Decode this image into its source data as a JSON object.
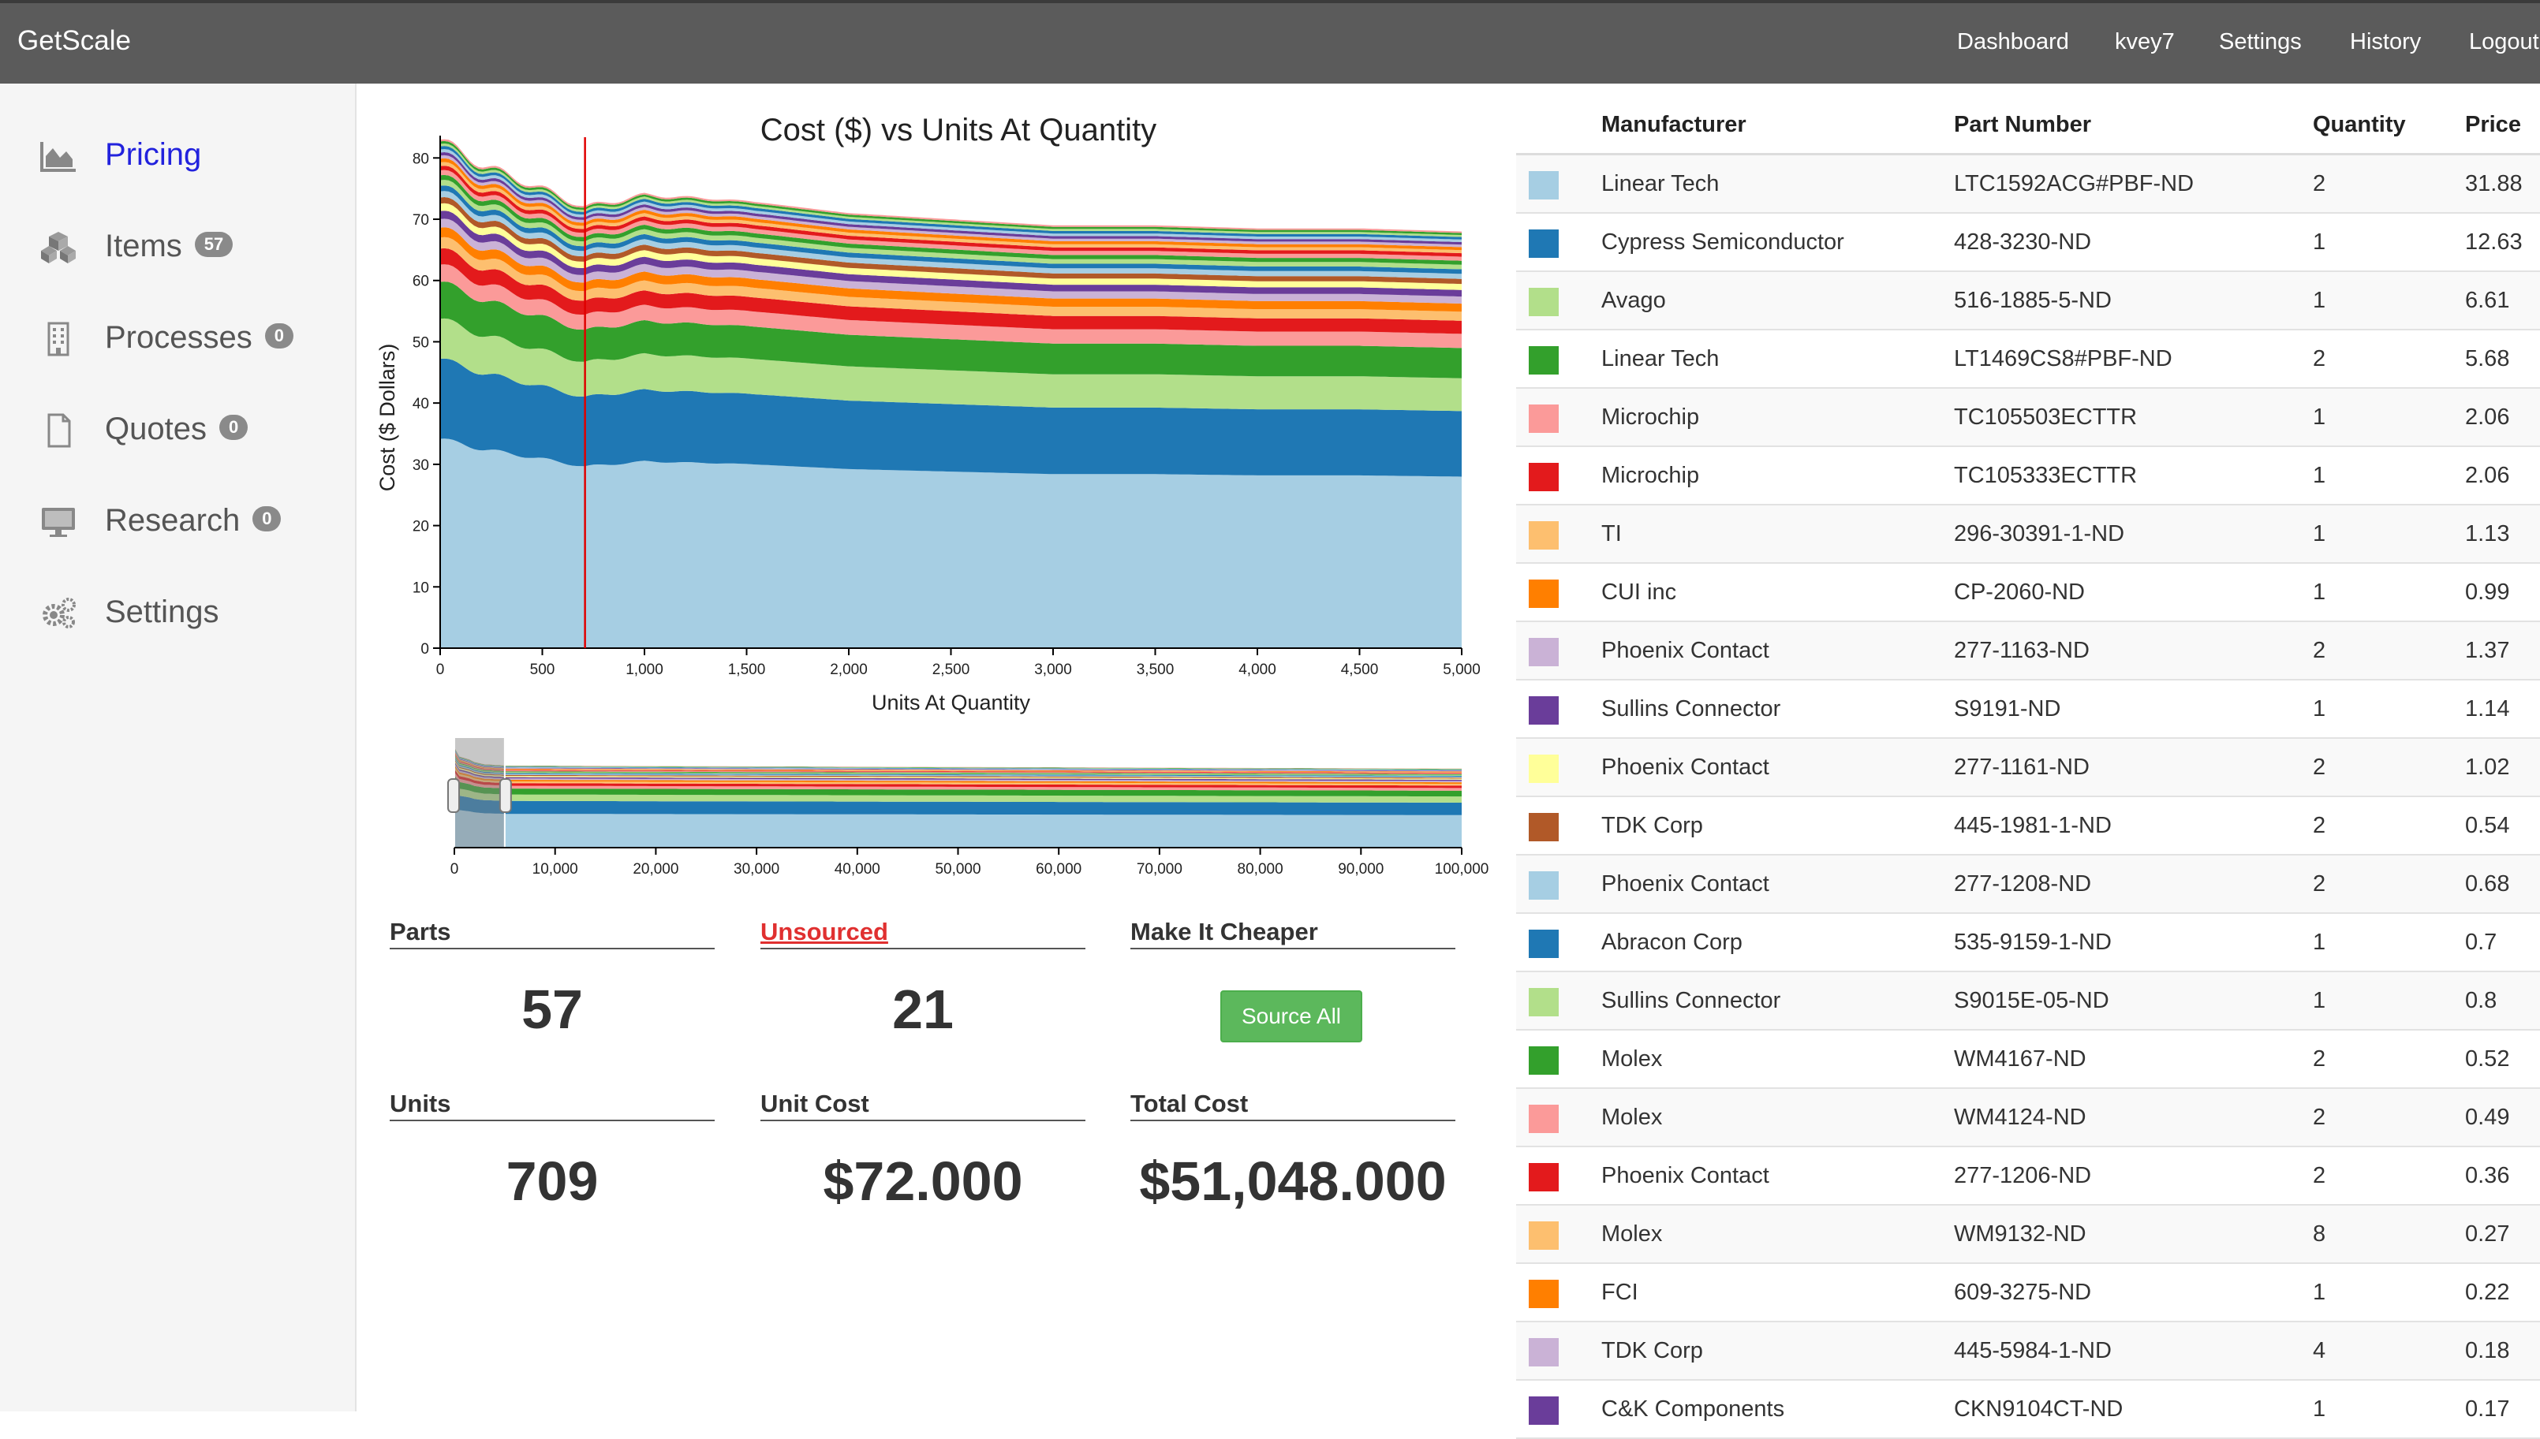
{
  "app": {
    "brand": "GetScale"
  },
  "nav": [
    "Dashboard",
    "kvey7",
    "Settings",
    "History",
    "Logout"
  ],
  "sidebar": {
    "items": [
      {
        "label": "Pricing",
        "icon": "area-chart-icon",
        "badge": null
      },
      {
        "label": "Items",
        "icon": "cubes-icon",
        "badge": "57"
      },
      {
        "label": "Processes",
        "icon": "building-icon",
        "badge": "0"
      },
      {
        "label": "Quotes",
        "icon": "file-icon",
        "badge": "0"
      },
      {
        "label": "Research",
        "icon": "monitor-icon",
        "badge": "0"
      },
      {
        "label": "Settings",
        "icon": "gears-icon",
        "badge": null
      }
    ]
  },
  "chart": {
    "title": "Cost ($) vs Units At Quantity",
    "xlabel": "Units At Quantity",
    "ylabel": "Cost ($ Dollars)"
  },
  "chart_data": [
    {
      "type": "area",
      "stacked": true,
      "title": "Cost ($) vs Units At Quantity",
      "xlabel": "Units At Quantity",
      "ylabel": "Cost ($ Dollars)",
      "xlim": [
        0,
        5000
      ],
      "ylim": [
        0,
        83
      ],
      "x_ticks": [
        "0",
        "500",
        "1,000",
        "1,500",
        "2,000",
        "2,500",
        "3,000",
        "3,500",
        "4,000",
        "4,500",
        "5,000"
      ],
      "y_ticks": [
        "0",
        "10",
        "20",
        "30",
        "40",
        "50",
        "60",
        "70",
        "80"
      ],
      "marker_x": 709,
      "x": [
        0,
        200,
        500,
        709,
        1000,
        1500,
        2000,
        2500,
        3000,
        3500,
        4000,
        4500,
        5000
      ],
      "series_values_at_x0": [
        34,
        13,
        6.5,
        6.0,
        2.8,
        2.6,
        1.8,
        1.6,
        1.4,
        1.3,
        1.2,
        1.0,
        1.0,
        0.9,
        0.9,
        0.8,
        0.8,
        0.7,
        0.6,
        0.6,
        0.5,
        0.5,
        0.5,
        0.5,
        0.4,
        0.4,
        0.3
      ],
      "total": [
        83,
        79,
        75,
        72,
        74,
        73,
        71,
        70,
        69,
        69,
        68.5,
        68.5,
        68
      ]
    },
    {
      "type": "area",
      "stacked": true,
      "title": "",
      "xlim": [
        0,
        100000
      ],
      "x_ticks": [
        "0",
        "10,000",
        "20,000",
        "30,000",
        "40,000",
        "50,000",
        "60,000",
        "70,000",
        "80,000",
        "90,000",
        "100,000"
      ],
      "brush_range": [
        0,
        5000
      ]
    }
  ],
  "stats": {
    "parts": {
      "label": "Parts",
      "value": "57"
    },
    "unsourced": {
      "label": "Unsourced",
      "value": "21"
    },
    "cheaper": {
      "label": "Make It Cheaper",
      "button": "Source All"
    },
    "units": {
      "label": "Units",
      "value": "709"
    },
    "unit_cost": {
      "label": "Unit Cost",
      "value": "$72.000"
    },
    "total_cost": {
      "label": "Total Cost",
      "value": "$51,048.000"
    }
  },
  "table": {
    "headers": [
      "Manufacturer",
      "Part Number",
      "Quantity",
      "Price"
    ],
    "rows": [
      {
        "color": "#a6cee3",
        "mfr": "Linear Tech",
        "part": "LTC1592ACG#PBF-ND",
        "qty": "2",
        "price": "31.88"
      },
      {
        "color": "#1f78b4",
        "mfr": "Cypress Semiconductor",
        "part": "428-3230-ND",
        "qty": "1",
        "price": "12.63"
      },
      {
        "color": "#b2df8a",
        "mfr": "Avago",
        "part": "516-1885-5-ND",
        "qty": "1",
        "price": "6.61"
      },
      {
        "color": "#33a02c",
        "mfr": "Linear Tech",
        "part": "LT1469CS8#PBF-ND",
        "qty": "2",
        "price": "5.68"
      },
      {
        "color": "#fb9a99",
        "mfr": "Microchip",
        "part": "TC105503ECTTR",
        "qty": "1",
        "price": "2.06"
      },
      {
        "color": "#e31a1c",
        "mfr": "Microchip",
        "part": "TC105333ECTTR",
        "qty": "1",
        "price": "2.06"
      },
      {
        "color": "#fdbf6f",
        "mfr": "TI",
        "part": "296-30391-1-ND",
        "qty": "1",
        "price": "1.13"
      },
      {
        "color": "#ff7f00",
        "mfr": "CUI inc",
        "part": "CP-2060-ND",
        "qty": "1",
        "price": "0.99"
      },
      {
        "color": "#cab2d6",
        "mfr": "Phoenix Contact",
        "part": "277-1163-ND",
        "qty": "2",
        "price": "1.37"
      },
      {
        "color": "#6a3d9a",
        "mfr": "Sullins Connector",
        "part": "S9191-ND",
        "qty": "1",
        "price": "1.14"
      },
      {
        "color": "#ffff99",
        "mfr": "Phoenix Contact",
        "part": "277-1161-ND",
        "qty": "2",
        "price": "1.02"
      },
      {
        "color": "#b15928",
        "mfr": "TDK Corp",
        "part": "445-1981-1-ND",
        "qty": "2",
        "price": "0.54"
      },
      {
        "color": "#a6cee3",
        "mfr": "Phoenix Contact",
        "part": "277-1208-ND",
        "qty": "2",
        "price": "0.68"
      },
      {
        "color": "#1f78b4",
        "mfr": "Abracon Corp",
        "part": "535-9159-1-ND",
        "qty": "1",
        "price": "0.7"
      },
      {
        "color": "#b2df8a",
        "mfr": "Sullins Connector",
        "part": "S9015E-05-ND",
        "qty": "1",
        "price": "0.8"
      },
      {
        "color": "#33a02c",
        "mfr": "Molex",
        "part": "WM4167-ND",
        "qty": "2",
        "price": "0.52"
      },
      {
        "color": "#fb9a99",
        "mfr": "Molex",
        "part": "WM4124-ND",
        "qty": "2",
        "price": "0.49"
      },
      {
        "color": "#e31a1c",
        "mfr": "Phoenix Contact",
        "part": "277-1206-ND",
        "qty": "2",
        "price": "0.36"
      },
      {
        "color": "#fdbf6f",
        "mfr": "Molex",
        "part": "WM9132-ND",
        "qty": "8",
        "price": "0.27"
      },
      {
        "color": "#ff7f00",
        "mfr": "FCI",
        "part": "609-3275-ND",
        "qty": "1",
        "price": "0.22"
      },
      {
        "color": "#cab2d6",
        "mfr": "TDK Corp",
        "part": "445-5984-1-ND",
        "qty": "4",
        "price": "0.18"
      },
      {
        "color": "#6a3d9a",
        "mfr": "C&K Components",
        "part": "CKN9104CT-ND",
        "qty": "1",
        "price": "0.17"
      }
    ]
  },
  "colors": {
    "topbar": "#5b5b5b",
    "active_nav": "#2222dd",
    "unsourced": "#e03030",
    "source_button": "#5cb85c",
    "marker_line": "#e00000"
  }
}
